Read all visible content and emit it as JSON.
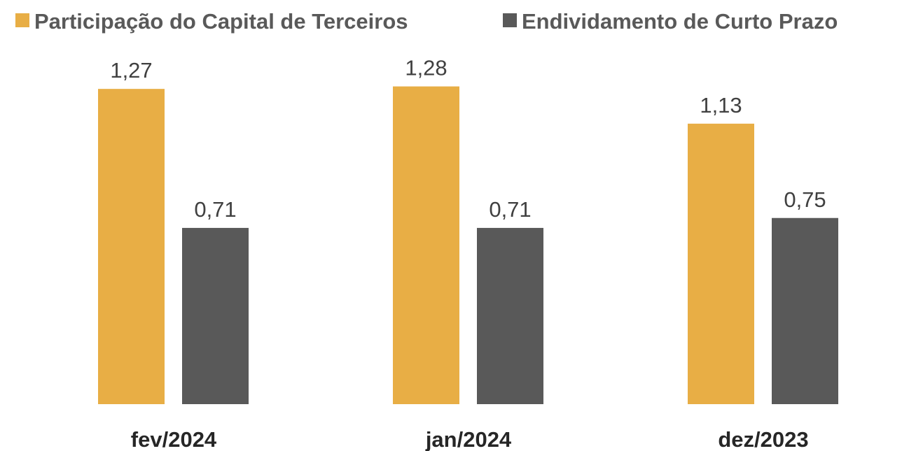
{
  "chart_data": {
    "type": "bar",
    "categories": [
      "fev/2024",
      "jan/2024",
      "dez/2023"
    ],
    "series": [
      {
        "name": "Participação do Capital de Terceiros",
        "color": "#e8ae45",
        "values": [
          1.27,
          1.28,
          1.13
        ],
        "value_labels": [
          "1,27",
          "1,28",
          "1,13"
        ]
      },
      {
        "name": "Endividamento de Curto Prazo",
        "color": "#595959",
        "values": [
          0.71,
          0.71,
          0.75
        ],
        "value_labels": [
          "0,71",
          "0,71",
          "0,75"
        ]
      }
    ],
    "legend": "top"
  }
}
